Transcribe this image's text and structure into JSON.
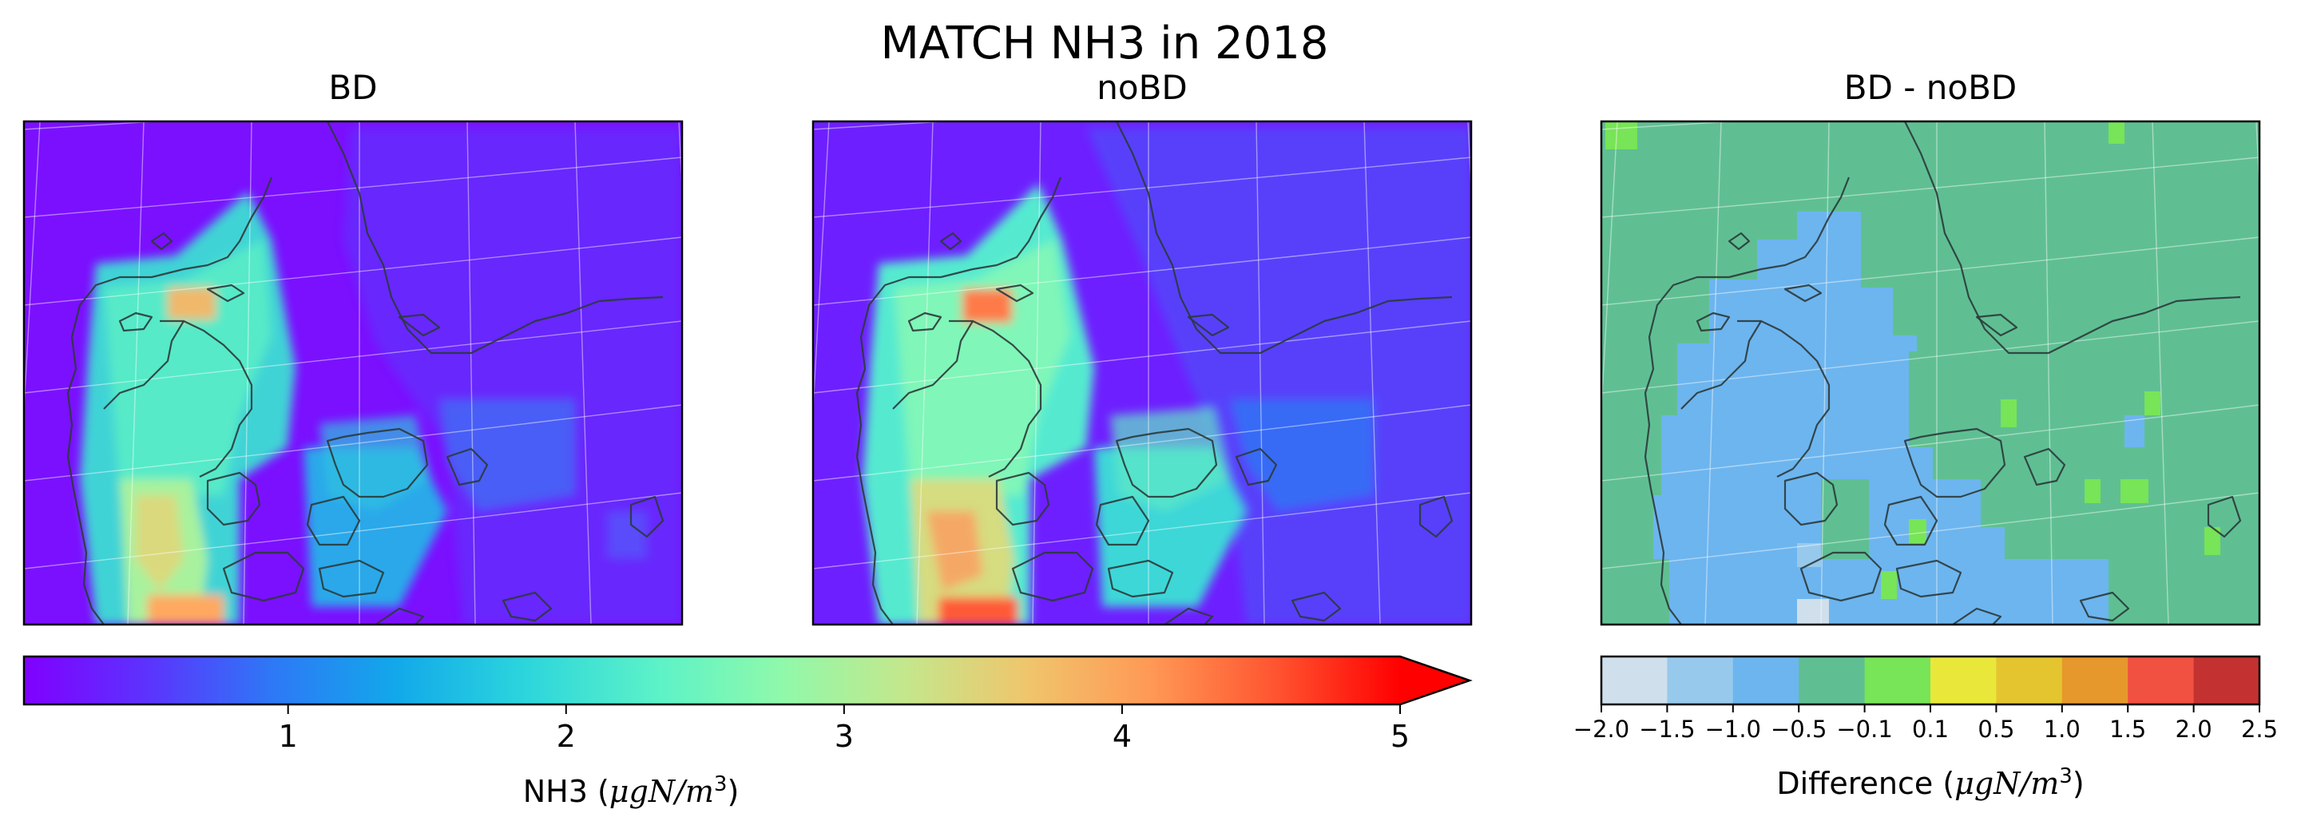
{
  "figure": {
    "suptitle": "MATCH NH3 in 2018"
  },
  "chart_data": [
    {
      "type": "heatmap",
      "title": "BD",
      "description_map": "Denmark region",
      "colormap": "rainbow",
      "colorbar_ref": "nh3_colorbar"
    },
    {
      "type": "heatmap",
      "title": "noBD",
      "description_map": "Denmark region",
      "colormap": "rainbow",
      "colorbar_ref": "nh3_colorbar"
    },
    {
      "type": "heatmap",
      "title": "BD - noBD",
      "description_map": "Denmark region",
      "colormap": "discrete-diverging",
      "colorbar_ref": "diff_colorbar"
    }
  ],
  "nh3_colorbar": {
    "label_prefix": "NH3 (",
    "label_math": "μgN/m",
    "label_exp": "3",
    "label_suffix": ")",
    "ticks": [
      "1",
      "2",
      "3",
      "4",
      "5"
    ],
    "tick_values": [
      1,
      2,
      3,
      4,
      5
    ],
    "range": [
      0.05,
      5.0
    ],
    "extend": "max",
    "colors": [
      "#8000ff",
      "#4f40fb",
      "#1996f3",
      "#1ac7e0",
      "#4df7c5",
      "#80ffb4",
      "#b2f396",
      "#e6d374",
      "#ffb360",
      "#ff7a43",
      "#ff3d1f",
      "#ff0000"
    ]
  },
  "diff_colorbar": {
    "label_prefix": "Difference (",
    "label_math": "μgN/m",
    "label_exp": "3",
    "label_suffix": ")",
    "bounds": [
      -2.0,
      -1.5,
      -1.0,
      -0.5,
      -0.1,
      0.1,
      0.5,
      1.0,
      1.5,
      2.0,
      2.5
    ],
    "tick_labels": [
      "−2.0",
      "−1.5",
      "−1.0",
      "−0.5",
      "−0.1",
      "0.1",
      "0.5",
      "1.0",
      "1.5",
      "2.0",
      "2.5"
    ],
    "colors": [
      "#cfdfeb",
      "#97c9ec",
      "#6db5ef",
      "#5fbf93",
      "#78e457",
      "#e9e83a",
      "#e4c530",
      "#e6982c",
      "#f05141",
      "#c43131"
    ]
  }
}
